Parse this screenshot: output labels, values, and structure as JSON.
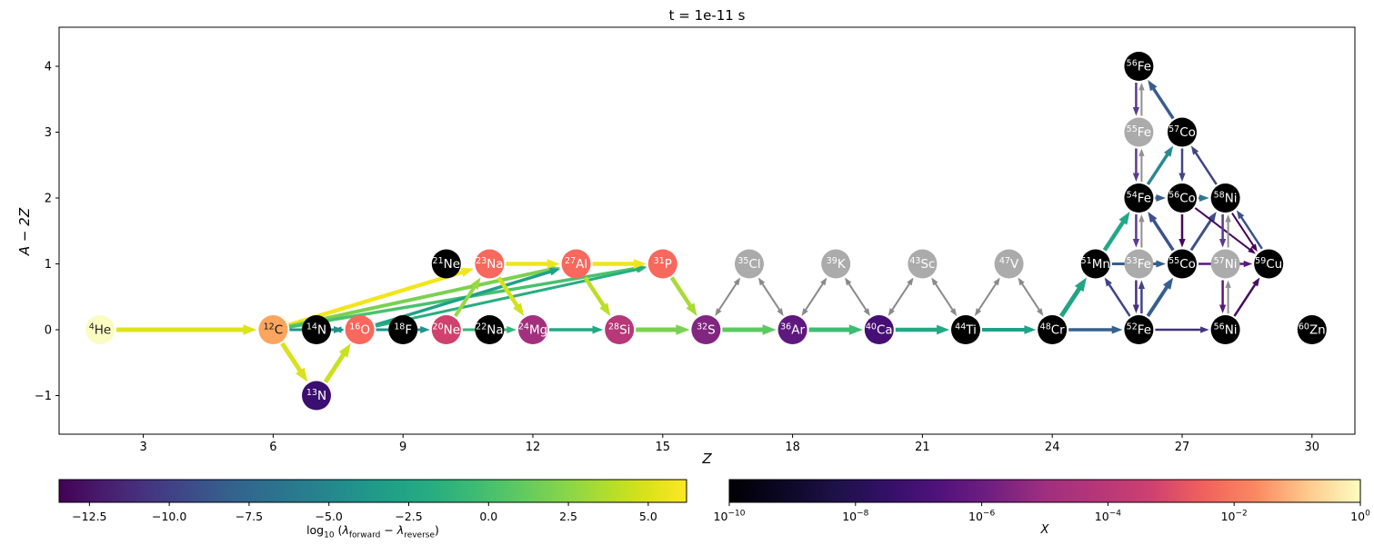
{
  "chart_data": {
    "type": "network",
    "title": "t = 1e-11 s",
    "xlabel": "Z",
    "ylabel": "A − 2Z",
    "x_ticks": [
      3,
      6,
      9,
      12,
      15,
      18,
      21,
      24,
      27,
      30
    ],
    "y_ticks": [
      {
        "v": -1,
        "label": "−1"
      },
      {
        "v": 0,
        "label": "0"
      },
      {
        "v": 1,
        "label": "1"
      },
      {
        "v": 2,
        "label": "2"
      },
      {
        "v": 3,
        "label": "3"
      },
      {
        "v": 4,
        "label": "4"
      }
    ],
    "xlim": [
      1.05,
      31.0
    ],
    "ylim": [
      -1.59,
      4.59
    ],
    "grid": false,
    "nodes": [
      {
        "id": "he4",
        "mass": "4",
        "symbol": "He",
        "Z": 2,
        "band": 0,
        "color": "#FBFCC2",
        "text": "#222222"
      },
      {
        "id": "c12",
        "mass": "12",
        "symbol": "C",
        "Z": 6,
        "band": 0,
        "color": "#FCA55E",
        "text": "#111111"
      },
      {
        "id": "n13",
        "mass": "13",
        "symbol": "N",
        "Z": 7,
        "band": -1,
        "color": "#3B0F70",
        "text": "#FFFFFF"
      },
      {
        "id": "n14",
        "mass": "14",
        "symbol": "N",
        "Z": 7,
        "band": 0,
        "color": "#000000",
        "text": "#FFFFFF"
      },
      {
        "id": "o16",
        "mass": "16",
        "symbol": "O",
        "Z": 8,
        "band": 0,
        "color": "#F8685C",
        "text": "#FFFFFF"
      },
      {
        "id": "f18",
        "mass": "18",
        "symbol": "F",
        "Z": 9,
        "band": 0,
        "color": "#000000",
        "text": "#FFFFFF"
      },
      {
        "id": "ne20",
        "mass": "20",
        "symbol": "Ne",
        "Z": 10,
        "band": 0,
        "color": "#D0416F",
        "text": "#FFFFFF"
      },
      {
        "id": "ne21",
        "mass": "21",
        "symbol": "Ne",
        "Z": 10,
        "band": 1,
        "color": "#000000",
        "text": "#FFFFFF"
      },
      {
        "id": "na22",
        "mass": "22",
        "symbol": "Na",
        "Z": 11,
        "band": 0,
        "color": "#000000",
        "text": "#FFFFFF"
      },
      {
        "id": "na23",
        "mass": "23",
        "symbol": "Na",
        "Z": 11,
        "band": 1,
        "color": "#F8685C",
        "text": "#FFFFFF"
      },
      {
        "id": "mg24",
        "mass": "24",
        "symbol": "Mg",
        "Z": 12,
        "band": 0,
        "color": "#A3307E",
        "text": "#FFFFFF"
      },
      {
        "id": "al27",
        "mass": "27",
        "symbol": "Al",
        "Z": 13,
        "band": 1,
        "color": "#F8685C",
        "text": "#FFFFFF"
      },
      {
        "id": "si28",
        "mass": "28",
        "symbol": "Si",
        "Z": 14,
        "band": 0,
        "color": "#B73779",
        "text": "#FFFFFF"
      },
      {
        "id": "p31",
        "mass": "31",
        "symbol": "P",
        "Z": 15,
        "band": 1,
        "color": "#F8685C",
        "text": "#FFFFFF"
      },
      {
        "id": "s32",
        "mass": "32",
        "symbol": "S",
        "Z": 16,
        "band": 0,
        "color": "#812581",
        "text": "#FFFFFF"
      },
      {
        "id": "cl35",
        "mass": "35",
        "symbol": "Cl",
        "Z": 17,
        "band": 1,
        "color": "#ABABAB",
        "text": "#FFFFFF"
      },
      {
        "id": "ar36",
        "mass": "36",
        "symbol": "Ar",
        "Z": 18,
        "band": 0,
        "color": "#5F187F",
        "text": "#FFFFFF"
      },
      {
        "id": "k39",
        "mass": "39",
        "symbol": "K",
        "Z": 19,
        "band": 1,
        "color": "#ABABAB",
        "text": "#FFFFFF"
      },
      {
        "id": "ca40",
        "mass": "40",
        "symbol": "Ca",
        "Z": 20,
        "band": 0,
        "color": "#450F76",
        "text": "#FFFFFF"
      },
      {
        "id": "sc43",
        "mass": "43",
        "symbol": "Sc",
        "Z": 21,
        "band": 1,
        "color": "#ABABAB",
        "text": "#FFFFFF"
      },
      {
        "id": "ti44",
        "mass": "44",
        "symbol": "Ti",
        "Z": 22,
        "band": 0,
        "color": "#000000",
        "text": "#FFFFFF"
      },
      {
        "id": "v47",
        "mass": "47",
        "symbol": "V",
        "Z": 23,
        "band": 1,
        "color": "#ABABAB",
        "text": "#FFFFFF"
      },
      {
        "id": "cr48",
        "mass": "48",
        "symbol": "Cr",
        "Z": 24,
        "band": 0,
        "color": "#000000",
        "text": "#FFFFFF"
      },
      {
        "id": "mn51",
        "mass": "51",
        "symbol": "Mn",
        "Z": 25,
        "band": 1,
        "color": "#000000",
        "text": "#FFFFFF"
      },
      {
        "id": "fe52",
        "mass": "52",
        "symbol": "Fe",
        "Z": 26,
        "band": 0,
        "color": "#000000",
        "text": "#FFFFFF"
      },
      {
        "id": "fe53",
        "mass": "53",
        "symbol": "Fe",
        "Z": 26,
        "band": 1,
        "color": "#ABABAB",
        "text": "#FFFFFF"
      },
      {
        "id": "fe54",
        "mass": "54",
        "symbol": "Fe",
        "Z": 26,
        "band": 2,
        "color": "#000000",
        "text": "#FFFFFF"
      },
      {
        "id": "fe55",
        "mass": "55",
        "symbol": "Fe",
        "Z": 26,
        "band": 3,
        "color": "#ABABAB",
        "text": "#FFFFFF"
      },
      {
        "id": "fe56",
        "mass": "56",
        "symbol": "Fe",
        "Z": 26,
        "band": 4,
        "color": "#000000",
        "text": "#FFFFFF"
      },
      {
        "id": "co55",
        "mass": "55",
        "symbol": "Co",
        "Z": 27,
        "band": 1,
        "color": "#000000",
        "text": "#FFFFFF"
      },
      {
        "id": "co56",
        "mass": "56",
        "symbol": "Co",
        "Z": 27,
        "band": 2,
        "color": "#000000",
        "text": "#FFFFFF"
      },
      {
        "id": "co57",
        "mass": "57",
        "symbol": "Co",
        "Z": 27,
        "band": 3,
        "color": "#000000",
        "text": "#FFFFFF"
      },
      {
        "id": "ni56",
        "mass": "56",
        "symbol": "Ni",
        "Z": 28,
        "band": 0,
        "color": "#000000",
        "text": "#FFFFFF"
      },
      {
        "id": "ni57",
        "mass": "57",
        "symbol": "Ni",
        "Z": 28,
        "band": 1,
        "color": "#ABABAB",
        "text": "#FFFFFF"
      },
      {
        "id": "ni58",
        "mass": "58",
        "symbol": "Ni",
        "Z": 28,
        "band": 2,
        "color": "#000000",
        "text": "#FFFFFF"
      },
      {
        "id": "cu59",
        "mass": "59",
        "symbol": "Cu",
        "Z": 29,
        "band": 1,
        "color": "#000000",
        "text": "#FFFFFF"
      },
      {
        "id": "zn60",
        "mass": "60",
        "symbol": "Zn",
        "Z": 30,
        "band": 0,
        "color": "#000000",
        "text": "#FFFFFF"
      }
    ],
    "edges": [
      {
        "from": "he4",
        "to": "c12",
        "color": "#DCE319",
        "w": 5
      },
      {
        "from": "c12",
        "to": "n13",
        "color": "#D9E21A",
        "w": 5
      },
      {
        "from": "n13",
        "to": "o16",
        "color": "#C9E11F",
        "w": 5
      },
      {
        "from": "c12",
        "to": "na23",
        "color": "#F2E51C",
        "w": 4.5
      },
      {
        "from": "c12",
        "to": "al27",
        "color": "#7AD151",
        "w": 4
      },
      {
        "from": "c12",
        "to": "p31",
        "color": "#4AC16D",
        "w": 3.5
      },
      {
        "from": "o16",
        "to": "al27",
        "color": "#1FA187",
        "w": 3.5
      },
      {
        "from": "o16",
        "to": "p31",
        "color": "#28AE80",
        "w": 3
      },
      {
        "from": "ne20",
        "to": "na23",
        "color": "#98D83E",
        "w": 4
      },
      {
        "from": "na23",
        "to": "al27",
        "color": "#EFE51C",
        "w": 4.5
      },
      {
        "from": "al27",
        "to": "p31",
        "color": "#EFE51C",
        "w": 4.5
      },
      {
        "from": "na23",
        "to": "mg24",
        "color": "#D2E21B",
        "w": 4.5
      },
      {
        "from": "al27",
        "to": "si28",
        "color": "#BBDF27",
        "w": 4.5
      },
      {
        "from": "p31",
        "to": "s32",
        "color": "#A8DB34",
        "w": 4.5
      },
      {
        "from": "c12",
        "to": "o16",
        "color": "#21918C",
        "w": 3
      },
      {
        "from": "o16",
        "to": "n14",
        "color": "#21918C",
        "w": 2.5
      },
      {
        "from": "o16",
        "to": "ne20",
        "color": "#21918C",
        "w": 3
      },
      {
        "from": "ne20",
        "to": "mg24",
        "color": "#35B779",
        "w": 3
      },
      {
        "from": "mg24",
        "to": "si28",
        "color": "#23A884",
        "w": 3.5
      },
      {
        "from": "si28",
        "to": "s32",
        "color": "#7AD151",
        "w": 5
      },
      {
        "from": "s32",
        "to": "ar36",
        "color": "#5EC962",
        "w": 5
      },
      {
        "from": "ar36",
        "to": "ca40",
        "color": "#3FBC73",
        "w": 5
      },
      {
        "from": "ca40",
        "to": "ti44",
        "color": "#22A884",
        "w": 4.5
      },
      {
        "from": "ti44",
        "to": "cr48",
        "color": "#1FA187",
        "w": 4
      },
      {
        "from": "s32",
        "to": "cl35",
        "color": "#8A8A8A",
        "w": 2,
        "dir": "both"
      },
      {
        "from": "cl35",
        "to": "ar36",
        "color": "#8A8A8A",
        "w": 2,
        "dir": "both"
      },
      {
        "from": "ar36",
        "to": "k39",
        "color": "#8A8A8A",
        "w": 2,
        "dir": "both"
      },
      {
        "from": "k39",
        "to": "ca40",
        "color": "#8A8A8A",
        "w": 2,
        "dir": "both"
      },
      {
        "from": "ca40",
        "to": "sc43",
        "color": "#8A8A8A",
        "w": 2,
        "dir": "both"
      },
      {
        "from": "sc43",
        "to": "ti44",
        "color": "#8A8A8A",
        "w": 2,
        "dir": "both"
      },
      {
        "from": "ti44",
        "to": "v47",
        "color": "#8A8A8A",
        "w": 2,
        "dir": "both"
      },
      {
        "from": "v47",
        "to": "cr48",
        "color": "#8A8A8A",
        "w": 2,
        "dir": "both"
      },
      {
        "from": "cr48",
        "to": "mn51",
        "color": "#21A585",
        "w": 5
      },
      {
        "from": "cr48",
        "to": "fe52",
        "color": "#35608D",
        "w": 3.5
      },
      {
        "from": "mn51",
        "to": "fe54",
        "color": "#22A884",
        "w": 4.5
      },
      {
        "from": "mn51",
        "to": "co55",
        "color": "#345F8D",
        "w": 3
      },
      {
        "from": "fe52",
        "to": "co55",
        "color": "#355F8D",
        "w": 4
      },
      {
        "from": "fe52",
        "to": "mn51",
        "color": "#414487",
        "w": 2.5
      },
      {
        "from": "fe52",
        "to": "fe53",
        "color": "#414487",
        "w": 2.5,
        "off": 3
      },
      {
        "from": "fe53",
        "to": "fe52",
        "color": "#46327E",
        "w": 2.5,
        "off": 3
      },
      {
        "from": "fe52",
        "to": "ni56",
        "color": "#46327E",
        "w": 2.5
      },
      {
        "from": "co55",
        "to": "fe54",
        "color": "#3B528B",
        "w": 3.5
      },
      {
        "from": "co55",
        "to": "ni58",
        "color": "#3B528B",
        "w": 3
      },
      {
        "from": "co55",
        "to": "cu59",
        "color": "#5B167F",
        "w": 2.5
      },
      {
        "from": "ni56",
        "to": "cu59",
        "color": "#470D60",
        "w": 2.5
      },
      {
        "from": "ni56",
        "to": "ni57",
        "color": "#909090",
        "w": 2,
        "off": 3
      },
      {
        "from": "ni57",
        "to": "ni56",
        "color": "#5D177E",
        "w": 2.5,
        "off": 3
      },
      {
        "from": "co56",
        "to": "co55",
        "color": "#46085C",
        "w": 2.5
      },
      {
        "from": "fe54",
        "to": "co57",
        "color": "#2A8A8D",
        "w": 3.5
      },
      {
        "from": "co57",
        "to": "fe56",
        "color": "#3A5C8D",
        "w": 3.5
      },
      {
        "from": "co57",
        "to": "co56",
        "color": "#414487",
        "w": 2.5
      },
      {
        "from": "ni58",
        "to": "co57",
        "color": "#414487",
        "w": 2.5
      },
      {
        "from": "co56",
        "to": "ni58",
        "color": "#2A788E",
        "w": 3
      },
      {
        "from": "fe54",
        "to": "co56",
        "color": "#355F8D",
        "w": 3
      },
      {
        "from": "co56",
        "to": "cu59",
        "color": "#46085C",
        "w": 2
      },
      {
        "from": "ni58",
        "to": "cu59",
        "color": "#440154",
        "w": 2,
        "off": 3
      },
      {
        "from": "cu59",
        "to": "ni58",
        "color": "#3B528B",
        "w": 2.5,
        "off": 3
      },
      {
        "from": "fe56",
        "to": "fe55",
        "color": "#5B3A8F",
        "w": 2.5,
        "off": 3
      },
      {
        "from": "fe55",
        "to": "fe56",
        "color": "#909090",
        "w": 2,
        "off": 3
      },
      {
        "from": "fe55",
        "to": "fe54",
        "color": "#5B3A8F",
        "w": 2.5,
        "off": 3
      },
      {
        "from": "fe54",
        "to": "fe55",
        "color": "#909090",
        "w": 2,
        "off": 3
      },
      {
        "from": "fe54",
        "to": "fe53",
        "color": "#5B3A8F",
        "w": 2.5,
        "off": 3
      },
      {
        "from": "fe53",
        "to": "fe54",
        "color": "#909090",
        "w": 2,
        "off": 3
      },
      {
        "from": "ni58",
        "to": "ni57",
        "color": "#5B3A8F",
        "w": 2.5,
        "off": 3
      },
      {
        "from": "ni57",
        "to": "ni58",
        "color": "#909090",
        "w": 2,
        "off": 3
      }
    ],
    "colorbars": [
      {
        "id": "rate",
        "label_parts": [
          {
            "t": "log"
          },
          {
            "t": "10",
            "style": "sub"
          },
          {
            "t": " ("
          },
          {
            "t": "λ",
            "style": "italic"
          },
          {
            "t": "forward",
            "style": "sub"
          },
          {
            "t": " − "
          },
          {
            "t": "λ",
            "style": "italic"
          },
          {
            "t": "reverse",
            "style": "sub"
          },
          {
            "t": ")"
          }
        ],
        "range": [
          -13.45,
          6.2
        ],
        "ticks": [
          {
            "v": -12.5,
            "label": "−12.5"
          },
          {
            "v": -10.0,
            "label": "−10.0"
          },
          {
            "v": -7.5,
            "label": "−7.5"
          },
          {
            "v": -5.0,
            "label": "−5.0"
          },
          {
            "v": -2.5,
            "label": "−2.5"
          },
          {
            "v": 0.0,
            "label": "0.0"
          },
          {
            "v": 2.5,
            "label": "2.5"
          },
          {
            "v": 5.0,
            "label": "5.0"
          }
        ],
        "stops": [
          "#440154",
          "#481B6D",
          "#46327E",
          "#3F4889",
          "#355F8D",
          "#2D708E",
          "#277F8E",
          "#21918C",
          "#1FA187",
          "#28AE80",
          "#3FBC73",
          "#5EC962",
          "#84D44B",
          "#ADDC30",
          "#D8E219",
          "#FDE725"
        ]
      },
      {
        "id": "abundance",
        "label": "X",
        "ticks": [
          {
            "frac": 0.0,
            "mantissa": "10",
            "exp": "−10"
          },
          {
            "frac": 0.2,
            "mantissa": "10",
            "exp": "−8"
          },
          {
            "frac": 0.4,
            "mantissa": "10",
            "exp": "−6"
          },
          {
            "frac": 0.6,
            "mantissa": "10",
            "exp": "−4"
          },
          {
            "frac": 0.8,
            "mantissa": "10",
            "exp": "−2"
          },
          {
            "frac": 1.0,
            "mantissa": "10",
            "exp": "0"
          }
        ],
        "stops": [
          "#000004",
          "#0B0724",
          "#1D1147",
          "#331068",
          "#51127C",
          "#721F81",
          "#9F2F7F",
          "#B63679",
          "#CD4071",
          "#F1605D",
          "#FB8861",
          "#FEC98D",
          "#FCFDBF"
        ]
      }
    ]
  }
}
